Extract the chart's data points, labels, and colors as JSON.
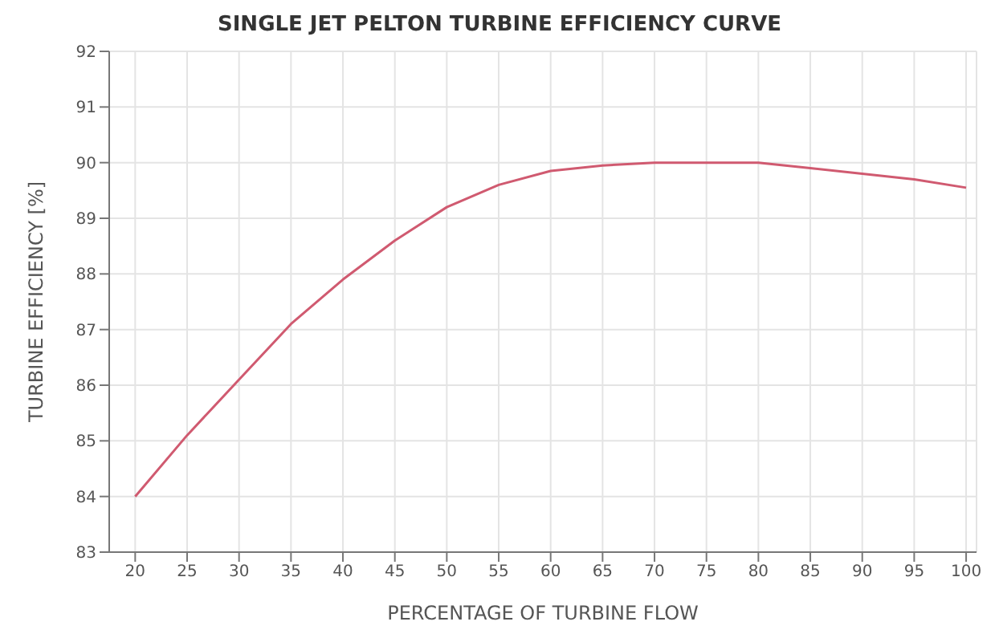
{
  "chart_data": {
    "type": "line",
    "title": "SINGLE JET PELTON TURBINE EFFICIENCY CURVE",
    "xlabel": "PERCENTAGE OF TURBINE FLOW",
    "ylabel": "TURBINE EFFICIENCY [%]",
    "x": [
      20,
      25,
      30,
      35,
      40,
      45,
      50,
      55,
      60,
      65,
      70,
      75,
      80,
      85,
      90,
      95,
      100
    ],
    "series": [
      {
        "color": "#d05a70",
        "values": [
          84.0,
          85.1,
          86.1,
          87.1,
          87.9,
          88.6,
          89.2,
          89.6,
          89.85,
          89.95,
          90.0,
          90.0,
          90.0,
          89.9,
          89.8,
          89.7,
          89.55
        ]
      }
    ],
    "xlim": [
      17.5,
      101
    ],
    "xticks": [
      20,
      25,
      30,
      35,
      40,
      45,
      50,
      55,
      60,
      65,
      70,
      75,
      80,
      85,
      90,
      95,
      100
    ],
    "ylim": [
      83,
      92
    ],
    "yticks": [
      83,
      84,
      85,
      86,
      87,
      88,
      89,
      90,
      91,
      92
    ],
    "grid": true,
    "marker": "none",
    "line_style": "solid"
  }
}
